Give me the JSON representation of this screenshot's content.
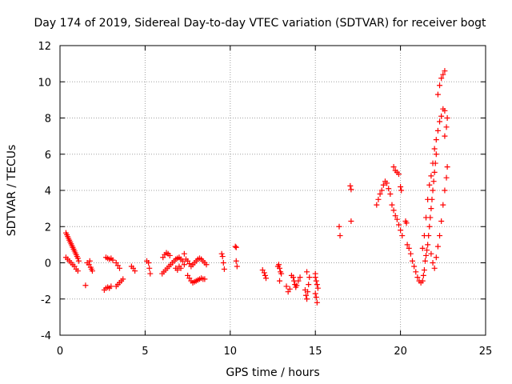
{
  "chart_data": {
    "type": "scatter",
    "title": "Day 174 of 2019, Sidereal Day-to-day VTEC variation (SDTVAR) for receiver bogt",
    "xlabel": "GPS time / hours",
    "ylabel": "SDTVAR / TECUs",
    "xlim": [
      0,
      25
    ],
    "ylim": [
      -4,
      12
    ],
    "xticks": [
      "0",
      "5",
      "10",
      "15",
      "20",
      "25"
    ],
    "yticks": [
      "-4",
      "-2",
      "0",
      "2",
      "4",
      "6",
      "8",
      "10",
      "12"
    ],
    "grid": true,
    "marker": "plus",
    "color": "#ff0000",
    "series": [
      {
        "name": "SDTVAR",
        "points": [
          [
            0.35,
            1.65
          ],
          [
            0.4,
            1.55
          ],
          [
            0.45,
            1.45
          ],
          [
            0.5,
            1.35
          ],
          [
            0.55,
            1.25
          ],
          [
            0.6,
            1.15
          ],
          [
            0.65,
            1.05
          ],
          [
            0.7,
            0.95
          ],
          [
            0.75,
            0.85
          ],
          [
            0.8,
            0.75
          ],
          [
            0.85,
            0.65
          ],
          [
            0.9,
            0.55
          ],
          [
            0.95,
            0.45
          ],
          [
            1.0,
            0.35
          ],
          [
            1.05,
            0.25
          ],
          [
            1.1,
            0.1
          ],
          [
            0.35,
            0.3
          ],
          [
            0.45,
            0.2
          ],
          [
            0.55,
            0.1
          ],
          [
            0.65,
            0.0
          ],
          [
            0.75,
            -0.1
          ],
          [
            0.85,
            -0.2
          ],
          [
            0.95,
            -0.35
          ],
          [
            1.05,
            -0.45
          ],
          [
            1.5,
            -1.25
          ],
          [
            1.6,
            0.0
          ],
          [
            1.7,
            -0.1
          ],
          [
            1.75,
            0.1
          ],
          [
            1.8,
            -0.25
          ],
          [
            1.85,
            -0.35
          ],
          [
            1.9,
            -0.45
          ],
          [
            2.6,
            -1.5
          ],
          [
            2.7,
            -1.4
          ],
          [
            2.8,
            -1.35
          ],
          [
            2.9,
            -1.4
          ],
          [
            3.0,
            -1.3
          ],
          [
            2.7,
            0.3
          ],
          [
            2.8,
            0.25
          ],
          [
            2.9,
            0.2
          ],
          [
            3.0,
            0.25
          ],
          [
            3.1,
            0.15
          ],
          [
            3.3,
            -1.3
          ],
          [
            3.4,
            -1.2
          ],
          [
            3.5,
            -1.1
          ],
          [
            3.6,
            -1.0
          ],
          [
            3.7,
            -0.9
          ],
          [
            3.3,
            0.0
          ],
          [
            3.4,
            -0.15
          ],
          [
            3.5,
            -0.3
          ],
          [
            4.2,
            -0.2
          ],
          [
            4.3,
            -0.3
          ],
          [
            4.4,
            -0.45
          ],
          [
            5.1,
            0.1
          ],
          [
            5.2,
            0.0
          ],
          [
            5.25,
            -0.3
          ],
          [
            5.3,
            -0.6
          ],
          [
            6.0,
            -0.6
          ],
          [
            6.1,
            -0.5
          ],
          [
            6.2,
            -0.4
          ],
          [
            6.3,
            -0.3
          ],
          [
            6.4,
            -0.2
          ],
          [
            6.5,
            -0.1
          ],
          [
            6.05,
            0.3
          ],
          [
            6.15,
            0.45
          ],
          [
            6.25,
            0.55
          ],
          [
            6.35,
            0.5
          ],
          [
            6.45,
            0.4
          ],
          [
            6.6,
            0.0
          ],
          [
            6.7,
            0.1
          ],
          [
            6.8,
            0.2
          ],
          [
            6.9,
            0.25
          ],
          [
            7.0,
            0.3
          ],
          [
            7.1,
            0.2
          ],
          [
            7.2,
            0.1
          ],
          [
            7.3,
            -0.1
          ],
          [
            6.8,
            -0.3
          ],
          [
            6.9,
            -0.4
          ],
          [
            7.0,
            -0.2
          ],
          [
            7.1,
            -0.3
          ],
          [
            7.3,
            0.5
          ],
          [
            7.4,
            0.2
          ],
          [
            7.5,
            0.1
          ],
          [
            7.6,
            -0.05
          ],
          [
            7.5,
            -0.7
          ],
          [
            7.6,
            -0.85
          ],
          [
            7.7,
            -1.0
          ],
          [
            7.8,
            -1.1
          ],
          [
            7.9,
            -1.05
          ],
          [
            8.0,
            -1.0
          ],
          [
            8.1,
            -0.95
          ],
          [
            7.7,
            -0.2
          ],
          [
            7.8,
            -0.1
          ],
          [
            7.9,
            0.0
          ],
          [
            8.0,
            0.1
          ],
          [
            8.1,
            0.2
          ],
          [
            8.2,
            0.25
          ],
          [
            8.3,
            0.2
          ],
          [
            8.4,
            0.1
          ],
          [
            8.5,
            0.0
          ],
          [
            8.6,
            -0.1
          ],
          [
            8.2,
            -0.9
          ],
          [
            8.3,
            -0.85
          ],
          [
            8.4,
            -0.9
          ],
          [
            8.5,
            -0.9
          ],
          [
            9.5,
            0.5
          ],
          [
            9.55,
            0.35
          ],
          [
            9.6,
            0.0
          ],
          [
            9.65,
            -0.35
          ],
          [
            10.3,
            0.9
          ],
          [
            10.35,
            0.85
          ],
          [
            10.35,
            0.1
          ],
          [
            10.4,
            -0.2
          ],
          [
            11.9,
            -0.4
          ],
          [
            12.0,
            -0.55
          ],
          [
            12.05,
            -0.7
          ],
          [
            12.1,
            -0.85
          ],
          [
            12.8,
            -0.2
          ],
          [
            12.85,
            -0.1
          ],
          [
            12.9,
            -0.3
          ],
          [
            12.95,
            -0.5
          ],
          [
            13.0,
            -0.6
          ],
          [
            12.9,
            -1.0
          ],
          [
            13.3,
            -1.3
          ],
          [
            13.4,
            -1.6
          ],
          [
            13.5,
            -1.45
          ],
          [
            13.6,
            -0.7
          ],
          [
            13.7,
            -0.8
          ],
          [
            13.75,
            -1.0
          ],
          [
            13.8,
            -1.2
          ],
          [
            13.85,
            -1.35
          ],
          [
            13.9,
            -1.25
          ],
          [
            14.0,
            -1.0
          ],
          [
            14.1,
            -0.8
          ],
          [
            14.4,
            -1.5
          ],
          [
            14.45,
            -1.8
          ],
          [
            14.5,
            -2.0
          ],
          [
            14.55,
            -1.6
          ],
          [
            14.6,
            -1.2
          ],
          [
            14.65,
            -0.8
          ],
          [
            14.5,
            -0.5
          ],
          [
            15.0,
            -0.8
          ],
          [
            15.05,
            -1.0
          ],
          [
            15.1,
            -1.2
          ],
          [
            15.15,
            -1.4
          ],
          [
            15.0,
            -1.7
          ],
          [
            15.05,
            -1.9
          ],
          [
            15.1,
            -2.2
          ],
          [
            15.0,
            -0.6
          ],
          [
            16.4,
            2.0
          ],
          [
            16.45,
            1.5
          ],
          [
            17.05,
            4.25
          ],
          [
            17.1,
            4.05
          ],
          [
            17.1,
            2.3
          ],
          [
            18.6,
            3.2
          ],
          [
            18.7,
            3.5
          ],
          [
            18.8,
            3.8
          ],
          [
            18.9,
            4.0
          ],
          [
            19.0,
            4.3
          ],
          [
            19.1,
            4.5
          ],
          [
            19.2,
            4.4
          ],
          [
            19.3,
            4.1
          ],
          [
            19.4,
            3.8
          ],
          [
            19.6,
            5.3
          ],
          [
            19.7,
            5.1
          ],
          [
            19.8,
            5.0
          ],
          [
            19.9,
            4.9
          ],
          [
            20.0,
            4.2
          ],
          [
            20.05,
            4.0
          ],
          [
            19.5,
            3.2
          ],
          [
            19.6,
            2.9
          ],
          [
            19.7,
            2.6
          ],
          [
            19.8,
            2.4
          ],
          [
            19.9,
            2.1
          ],
          [
            20.0,
            1.8
          ],
          [
            20.1,
            1.5
          ],
          [
            20.3,
            2.3
          ],
          [
            20.35,
            2.2
          ],
          [
            20.4,
            1.0
          ],
          [
            20.5,
            0.8
          ],
          [
            20.6,
            0.5
          ],
          [
            20.7,
            0.1
          ],
          [
            20.8,
            -0.2
          ],
          [
            20.9,
            -0.5
          ],
          [
            21.0,
            -0.8
          ],
          [
            21.1,
            -1.0
          ],
          [
            21.2,
            -1.1
          ],
          [
            21.3,
            -1.0
          ],
          [
            21.35,
            -0.7
          ],
          [
            21.4,
            -0.4
          ],
          [
            21.45,
            0.1
          ],
          [
            21.5,
            0.4
          ],
          [
            21.55,
            0.7
          ],
          [
            21.6,
            1.0
          ],
          [
            21.65,
            1.5
          ],
          [
            21.7,
            2.0
          ],
          [
            21.75,
            2.5
          ],
          [
            21.8,
            3.0
          ],
          [
            21.85,
            3.5
          ],
          [
            21.9,
            4.0
          ],
          [
            21.95,
            4.5
          ],
          [
            22.0,
            5.0
          ],
          [
            22.05,
            5.5
          ],
          [
            22.1,
            6.0
          ],
          [
            21.3,
            0.8
          ],
          [
            21.4,
            1.5
          ],
          [
            21.5,
            2.5
          ],
          [
            21.6,
            3.5
          ],
          [
            21.7,
            4.3
          ],
          [
            21.8,
            4.8
          ],
          [
            21.9,
            5.5
          ],
          [
            22.0,
            6.3
          ],
          [
            22.1,
            6.8
          ],
          [
            22.2,
            7.3
          ],
          [
            22.3,
            7.8
          ],
          [
            22.4,
            8.1
          ],
          [
            22.5,
            8.5
          ],
          [
            22.6,
            8.4
          ],
          [
            22.2,
            9.3
          ],
          [
            22.3,
            9.8
          ],
          [
            22.4,
            10.2
          ],
          [
            22.5,
            10.4
          ],
          [
            22.6,
            10.6
          ],
          [
            21.8,
            0.5
          ],
          [
            21.9,
            0.0
          ],
          [
            22.0,
            -0.3
          ],
          [
            22.1,
            0.3
          ],
          [
            22.2,
            0.9
          ],
          [
            22.3,
            1.5
          ],
          [
            22.4,
            2.3
          ],
          [
            22.5,
            3.2
          ],
          [
            22.6,
            4.0
          ],
          [
            22.7,
            4.7
          ],
          [
            22.75,
            5.3
          ],
          [
            22.6,
            7.0
          ],
          [
            22.7,
            7.5
          ],
          [
            22.75,
            8.0
          ]
        ]
      }
    ]
  }
}
